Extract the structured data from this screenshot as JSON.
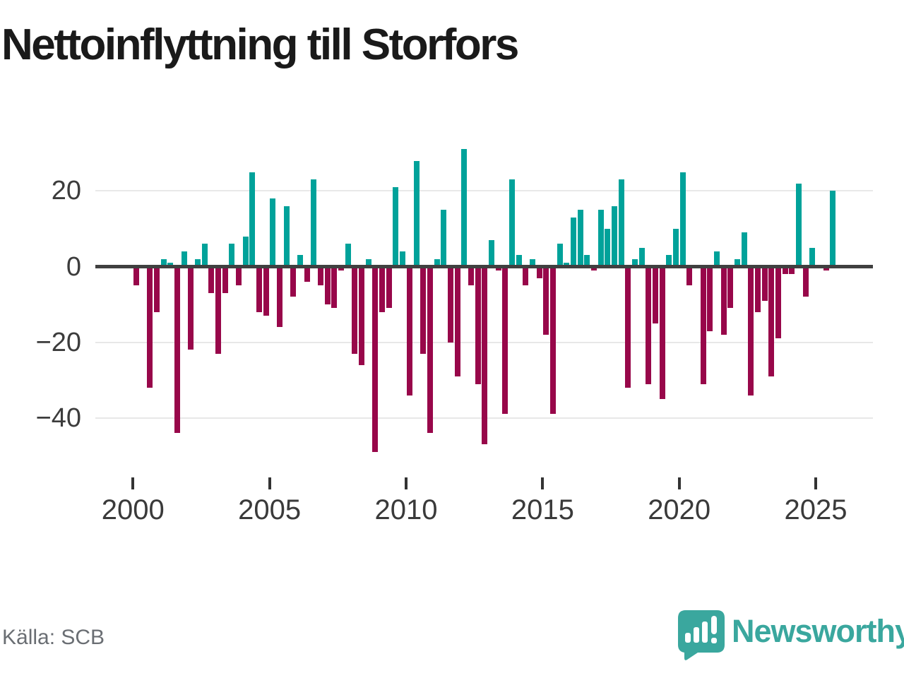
{
  "title": "Nettoinflyttning till Storfors",
  "source": "Källa: SCB",
  "logo": {
    "text": "Newsworthy"
  },
  "colors": {
    "positive": "#00a29a",
    "negative": "#98074a",
    "axis": "#404040",
    "grid": "#e8e8e8",
    "logo_teal": "#3aa79e"
  },
  "chart_data": {
    "type": "bar",
    "title": "Nettoinflyttning till Storfors",
    "frequency": "quarterly",
    "x_start": {
      "year": 2000,
      "quarter": 1
    },
    "x_tick_years": [
      2000,
      2005,
      2010,
      2015,
      2020,
      2025
    ],
    "y_ticks": [
      {
        "value": 20,
        "label": "20"
      },
      {
        "value": 0,
        "label": "0"
      },
      {
        "value": -20,
        "label": "−20"
      },
      {
        "value": -40,
        "label": "−40"
      }
    ],
    "ylim": [
      -52,
      34
    ],
    "grid": true,
    "legend": false,
    "values": [
      -5,
      0,
      -32,
      -12,
      2,
      1,
      -44,
      4,
      -22,
      2,
      6,
      -7,
      -23,
      -7,
      6,
      -5,
      8,
      25,
      -12,
      -13,
      18,
      -16,
      16,
      -8,
      3,
      -4,
      23,
      -5,
      -10,
      -11,
      -1,
      6,
      -23,
      -26,
      2,
      -49,
      -12,
      -11,
      21,
      4,
      -34,
      28,
      -23,
      -44,
      2,
      15,
      -20,
      -29,
      31,
      -5,
      -31,
      -47,
      7,
      -1,
      -39,
      23,
      3,
      -5,
      2,
      -3,
      -18,
      -39,
      6,
      1,
      13,
      15,
      3,
      -1,
      15,
      10,
      16,
      23,
      -32,
      2,
      5,
      -31,
      -15,
      -35,
      3,
      10,
      25,
      -5,
      0,
      -31,
      -17,
      4,
      -18,
      -11,
      2,
      9,
      -34,
      -12,
      -9,
      -29,
      -19,
      -2,
      -2,
      22,
      -8,
      5,
      0,
      -1,
      20
    ]
  }
}
